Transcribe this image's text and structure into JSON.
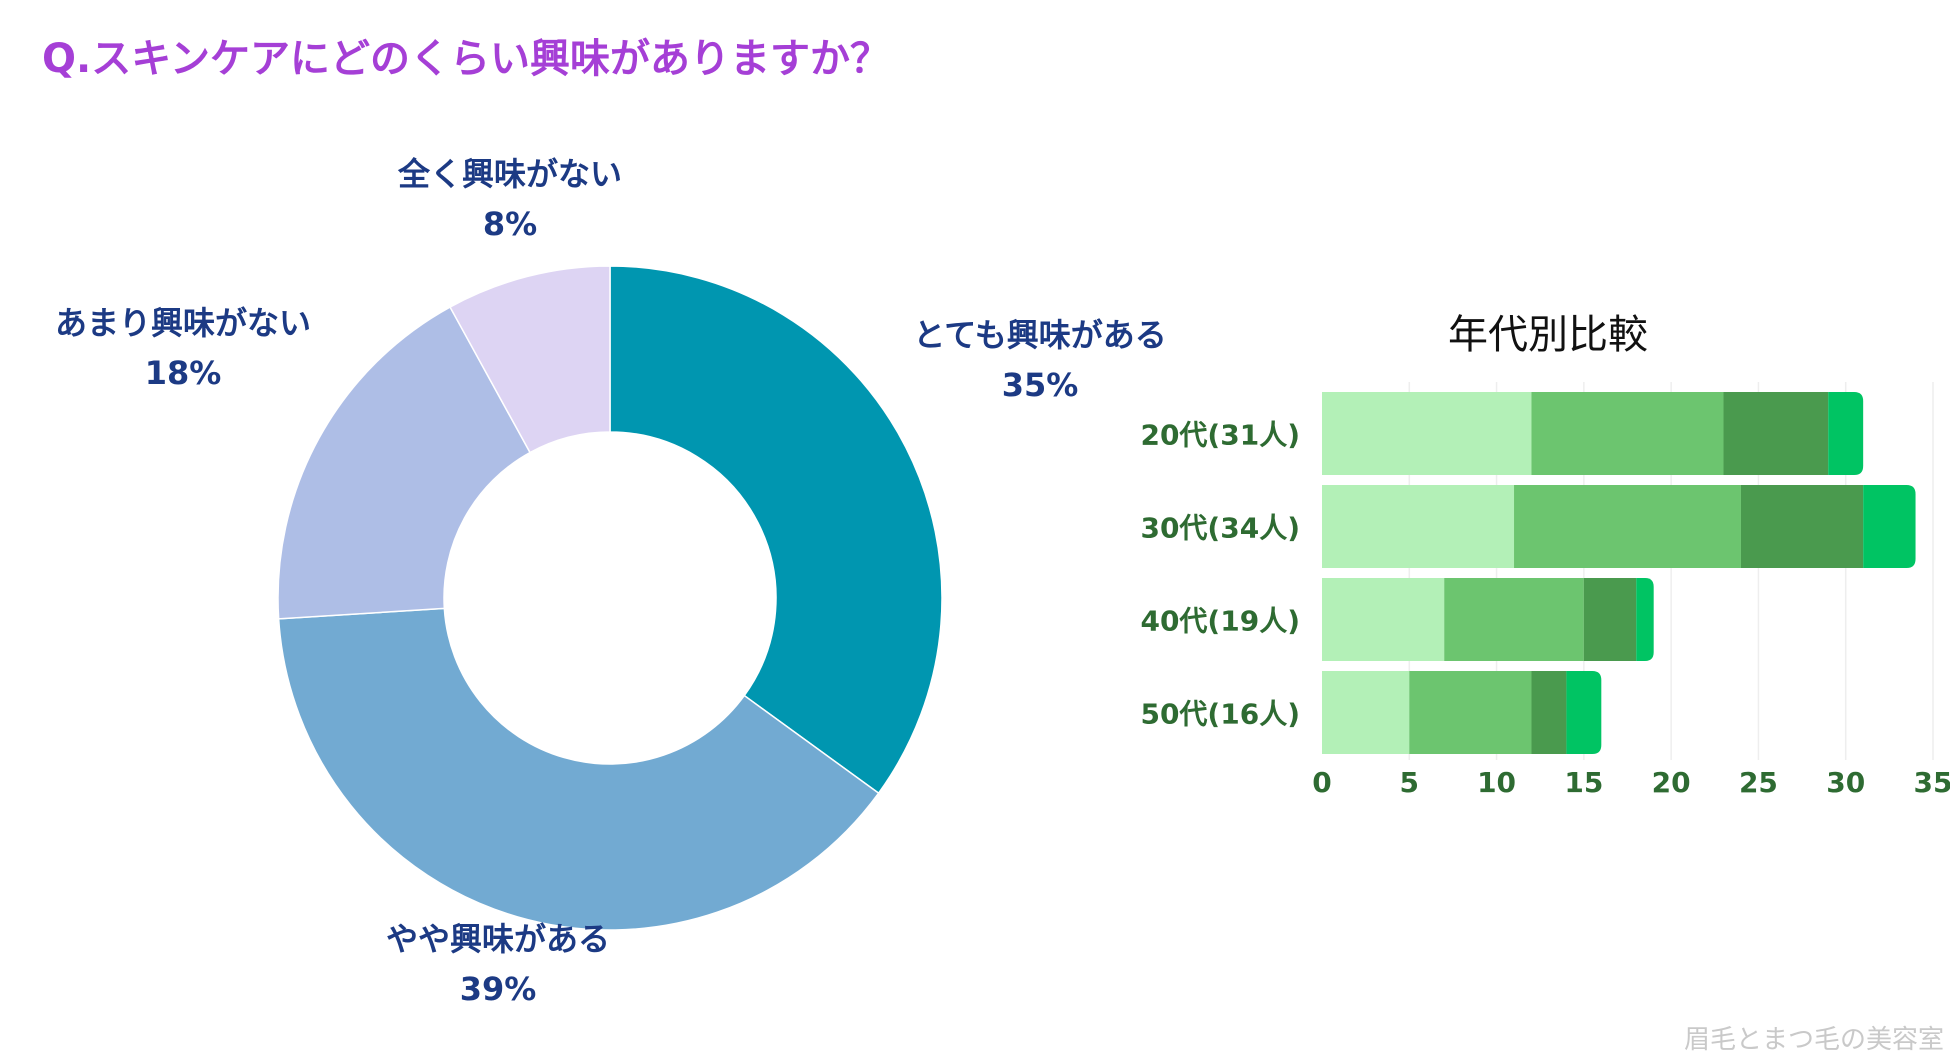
{
  "title": "Q.スキンケアにどのくらい興味がありますか？",
  "watermark": "眉毛とまつ毛の美容室",
  "chart_data": [
    {
      "type": "pie",
      "variant": "donut",
      "title": "",
      "unit": "%",
      "slices": [
        {
          "label": "とても興味がある",
          "value": 35,
          "display": "35%",
          "color": "#0096b0"
        },
        {
          "label": "やや興味がある",
          "value": 39,
          "display": "39%",
          "color": "#72aad2"
        },
        {
          "label": "あまり興味がない",
          "value": 18,
          "display": "18%",
          "color": "#aebee6"
        },
        {
          "label": "全く興味がない",
          "value": 8,
          "display": "8%",
          "color": "#ddd4f3"
        }
      ]
    },
    {
      "type": "bar",
      "orientation": "horizontal",
      "stacked": true,
      "title": "年代別比較",
      "categories": [
        "20代(31人)",
        "30代(34人)",
        "40代(19人)",
        "50代(16人)"
      ],
      "series": [
        {
          "name": "とても興味がある",
          "color": "#b3f0b7",
          "values": [
            12,
            11,
            7,
            5
          ]
        },
        {
          "name": "やや興味がある",
          "color": "#6cc56f",
          "values": [
            11,
            13,
            8,
            7
          ]
        },
        {
          "name": "あまり興味がない",
          "color": "#4a9a4e",
          "values": [
            6,
            7,
            3,
            2
          ]
        },
        {
          "name": "全く興味がない",
          "color": "#00c463",
          "values": [
            2,
            3,
            1,
            2
          ]
        }
      ],
      "xlim": [
        0,
        35
      ],
      "xticks": [
        0,
        5,
        10,
        15,
        20,
        25,
        30,
        35
      ],
      "grid": true
    }
  ]
}
